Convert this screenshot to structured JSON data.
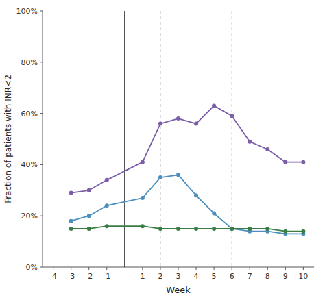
{
  "chart_data": {
    "type": "line",
    "x": [
      -3,
      -2,
      -1,
      1,
      2,
      3,
      4,
      5,
      6,
      7,
      8,
      9,
      10
    ],
    "series": [
      {
        "color": "#7B5EA7",
        "values": [
          0.29,
          0.3,
          0.34,
          0.41,
          0.56,
          0.58,
          0.56,
          0.63,
          0.59,
          0.49,
          0.46,
          0.41,
          0.41
        ]
      },
      {
        "color": "#4C8FBE",
        "values": [
          0.18,
          0.2,
          0.24,
          0.27,
          0.35,
          0.36,
          0.28,
          0.21,
          0.15,
          0.14,
          0.14,
          0.13,
          0.13
        ]
      },
      {
        "color": "#3A7D44",
        "values": [
          0.15,
          0.15,
          0.16,
          0.16,
          0.15,
          0.15,
          0.15,
          0.15,
          0.15,
          0.15,
          0.15,
          0.14,
          0.14
        ]
      }
    ],
    "vlines": [
      {
        "x": 0,
        "color": "black",
        "line_style": "solid"
      },
      {
        "x": 2,
        "color": "gray",
        "line_style": "dashed"
      },
      {
        "x": 6,
        "color": "gray",
        "line_style": "dashed"
      }
    ],
    "marker": "circle",
    "line_style": "solid",
    "xlabel": "Week",
    "ylabel": "Fraction of patients with INR<2",
    "xlim": [
      -4.6,
      10.6
    ],
    "ylim": [
      0,
      1.0
    ],
    "xticks": [
      -4,
      -3,
      -2,
      -1,
      1,
      2,
      3,
      4,
      5,
      6,
      7,
      8,
      9,
      10
    ],
    "yticks": [
      {
        "value": 0.0,
        "label": "0%"
      },
      {
        "value": 0.2,
        "label": "20%"
      },
      {
        "value": 0.4,
        "label": "40%"
      },
      {
        "value": 0.6,
        "label": "60%"
      },
      {
        "value": 0.8,
        "label": "80%"
      },
      {
        "value": 1.0,
        "label": "100%"
      }
    ],
    "grid": false
  }
}
